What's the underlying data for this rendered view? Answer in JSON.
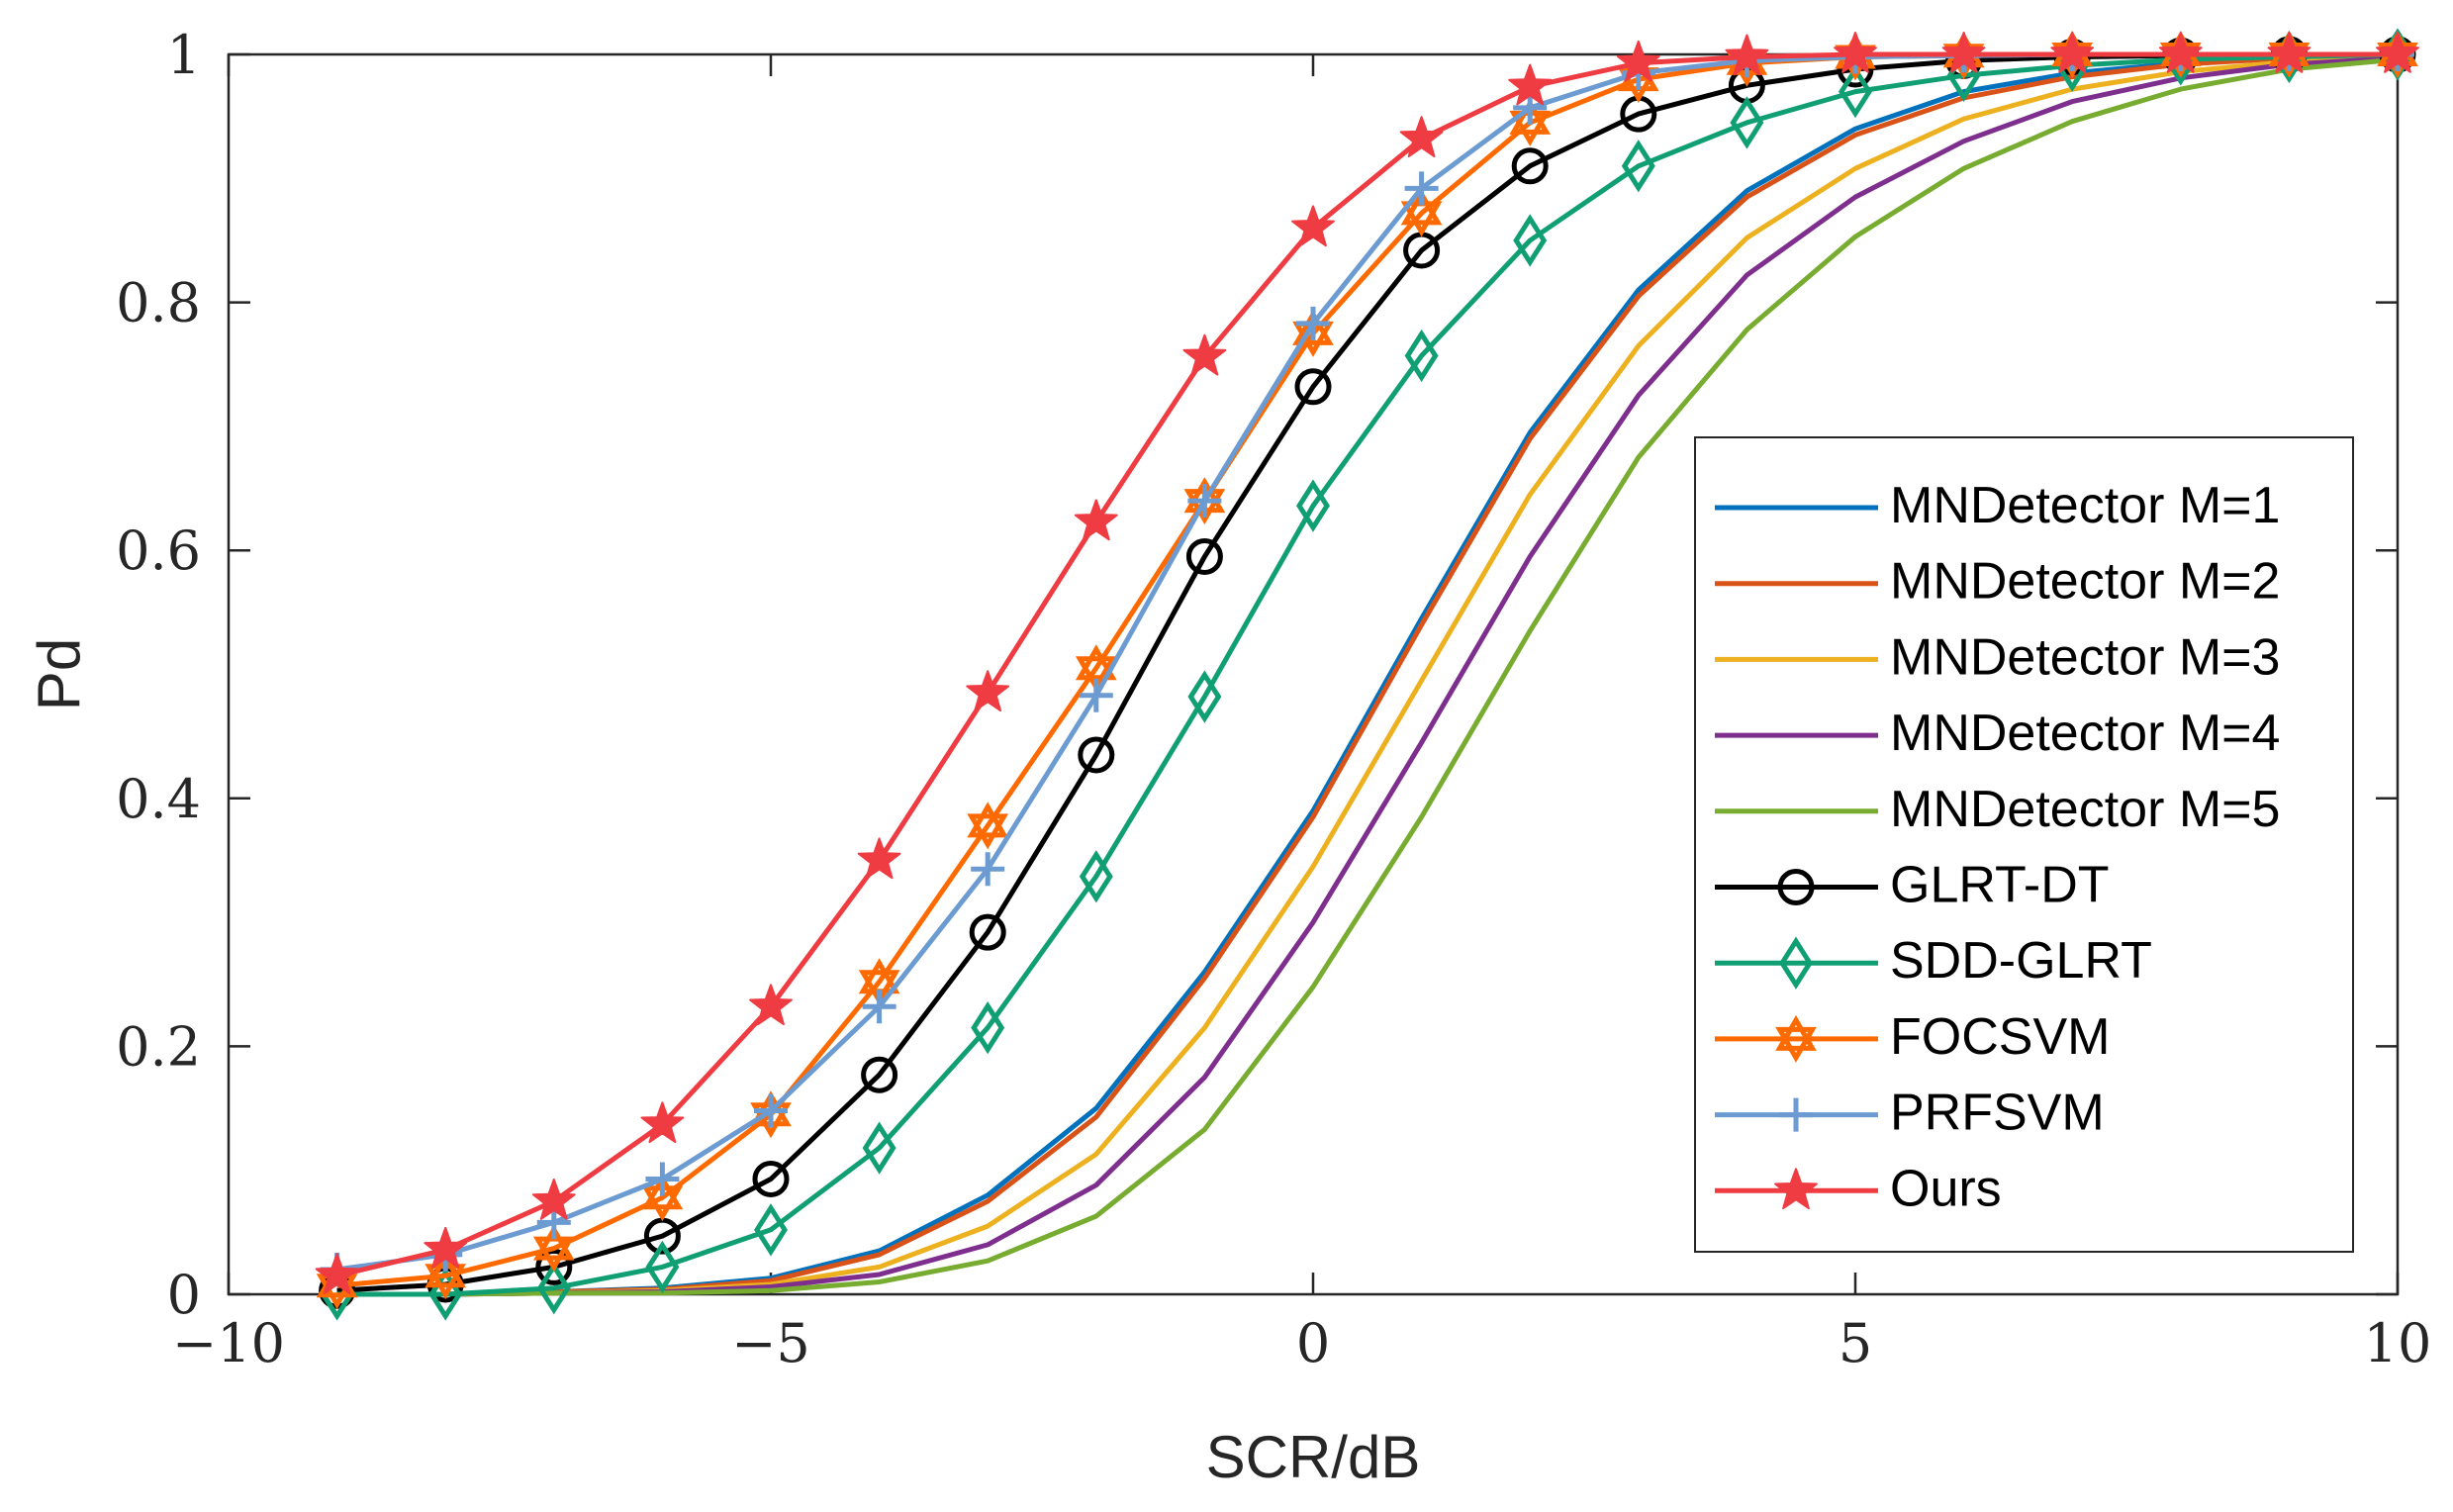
{
  "chart_data": {
    "type": "line",
    "title": "",
    "xlabel": "SCR/dB",
    "ylabel": "Pd",
    "xlim": [
      -10,
      10
    ],
    "ylim": [
      0,
      1
    ],
    "grid": false,
    "legend_position": "bottom-right",
    "xticks": [
      -10,
      -5,
      0,
      5,
      10
    ],
    "xtick_labels": [
      "−10",
      "−5",
      "0",
      "5",
      "10"
    ],
    "yticks": [
      0,
      0.2,
      0.4,
      0.6,
      0.8,
      1
    ],
    "ytick_labels": [
      "0",
      "0.2",
      "0.4",
      "0.6",
      "0.8",
      "1"
    ],
    "x": [
      -9,
      -8,
      -7,
      -6,
      -5,
      -4,
      -3,
      -2,
      -1,
      0,
      1,
      2,
      3,
      4,
      5,
      6,
      7,
      8,
      9,
      10
    ],
    "series": [
      {
        "name": "MNDetector M=1",
        "color": "#0072BD",
        "marker": "none",
        "values": [
          0.0,
          0.0,
          0.002,
          0.005,
          0.013,
          0.035,
          0.08,
          0.15,
          0.26,
          0.39,
          0.545,
          0.695,
          0.81,
          0.89,
          0.94,
          0.97,
          0.985,
          0.993,
          0.997,
          1.0
        ]
      },
      {
        "name": "MNDetector M=2",
        "color": "#D95319",
        "marker": "none",
        "values": [
          0.0,
          0.0,
          0.002,
          0.004,
          0.011,
          0.032,
          0.075,
          0.143,
          0.255,
          0.385,
          0.54,
          0.69,
          0.805,
          0.885,
          0.935,
          0.965,
          0.982,
          0.992,
          0.997,
          1.0
        ]
      },
      {
        "name": "MNDetector M=3",
        "color": "#EDB120",
        "marker": "none",
        "values": [
          0.0,
          0.0,
          0.001,
          0.003,
          0.008,
          0.022,
          0.055,
          0.113,
          0.215,
          0.345,
          0.495,
          0.645,
          0.765,
          0.852,
          0.908,
          0.948,
          0.972,
          0.986,
          0.994,
          0.998
        ]
      },
      {
        "name": "MNDetector M=4",
        "color": "#7E2F8E",
        "marker": "none",
        "values": [
          0.0,
          0.0,
          0.001,
          0.002,
          0.006,
          0.016,
          0.04,
          0.088,
          0.175,
          0.3,
          0.445,
          0.595,
          0.725,
          0.822,
          0.885,
          0.93,
          0.962,
          0.981,
          0.992,
          0.997
        ]
      },
      {
        "name": "MNDetector M=5",
        "color": "#77AC30",
        "marker": "none",
        "values": [
          0.0,
          0.0,
          0.001,
          0.001,
          0.003,
          0.01,
          0.027,
          0.063,
          0.133,
          0.248,
          0.385,
          0.535,
          0.675,
          0.778,
          0.853,
          0.908,
          0.946,
          0.972,
          0.988,
          0.996
        ]
      },
      {
        "name": "GLRT-DT",
        "color": "#000000",
        "marker": "circle",
        "values": [
          0.003,
          0.008,
          0.022,
          0.047,
          0.093,
          0.177,
          0.292,
          0.435,
          0.595,
          0.732,
          0.842,
          0.91,
          0.952,
          0.975,
          0.988,
          0.995,
          0.998,
          0.999,
          1.0,
          1.0
        ]
      },
      {
        "name": "SDD-GLRT",
        "color": "#109F73",
        "marker": "diamond",
        "values": [
          0.0,
          0.0,
          0.005,
          0.022,
          0.052,
          0.118,
          0.215,
          0.337,
          0.482,
          0.636,
          0.757,
          0.85,
          0.91,
          0.945,
          0.97,
          0.983,
          0.991,
          0.996,
          0.998,
          1.0
        ]
      },
      {
        "name": "FOCSVM",
        "color": "#FF6A00",
        "marker": "hexagram",
        "values": [
          0.007,
          0.015,
          0.037,
          0.078,
          0.145,
          0.252,
          0.378,
          0.505,
          0.64,
          0.775,
          0.872,
          0.945,
          0.98,
          0.993,
          0.998,
          0.999,
          1.0,
          1.0,
          1.0,
          1.0
        ]
      },
      {
        "name": "PRFSVM",
        "color": "#6C9BD2",
        "marker": "plus",
        "values": [
          0.02,
          0.032,
          0.058,
          0.093,
          0.148,
          0.232,
          0.343,
          0.483,
          0.64,
          0.783,
          0.892,
          0.957,
          0.985,
          0.995,
          0.998,
          0.999,
          1.0,
          1.0,
          1.0,
          1.0
        ]
      },
      {
        "name": "Ours",
        "color": "#EF3B42",
        "marker": "pentagram",
        "values": [
          0.015,
          0.036,
          0.075,
          0.137,
          0.232,
          0.35,
          0.485,
          0.623,
          0.756,
          0.86,
          0.932,
          0.974,
          0.993,
          0.998,
          1.0,
          1.0,
          1.0,
          1.0,
          1.0,
          1.0
        ]
      }
    ]
  }
}
